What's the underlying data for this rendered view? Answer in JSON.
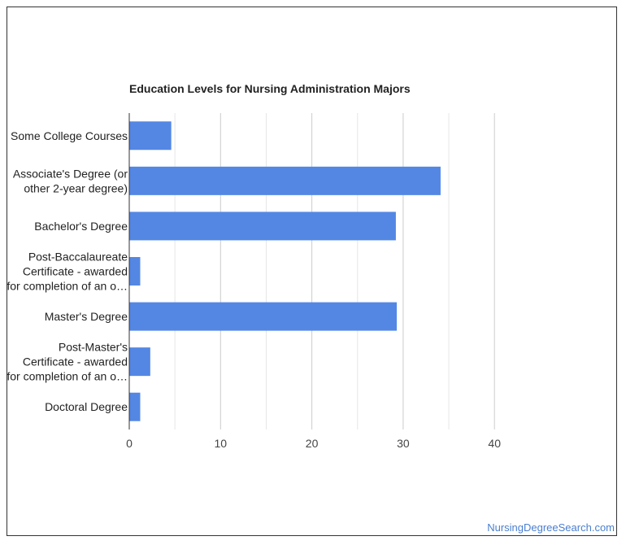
{
  "chart_data": {
    "type": "bar",
    "orientation": "horizontal",
    "title": "Education Levels for Nursing Administration Majors",
    "xlabel": "",
    "ylabel": "",
    "categories": [
      [
        "Some College Courses"
      ],
      [
        "Associate's Degree (or",
        "other 2-year degree)"
      ],
      [
        "Bachelor's Degree"
      ],
      [
        "Post-Baccalaureate",
        "Certificate - awarded",
        "for completion of an o…"
      ],
      [
        "Master's Degree"
      ],
      [
        "Post-Master's",
        "Certificate - awarded",
        "for completion of an o…"
      ],
      [
        "Doctoral Degree"
      ]
    ],
    "values": [
      4.6,
      34.1,
      29.2,
      1.2,
      29.3,
      2.3,
      1.2
    ],
    "xlim": [
      0,
      40
    ],
    "xticks": [
      0,
      10,
      20,
      30,
      40
    ],
    "grid": true,
    "legend": "none",
    "bar_color": "#5487e4"
  },
  "watermark": "NursingDegreeSearch.com"
}
